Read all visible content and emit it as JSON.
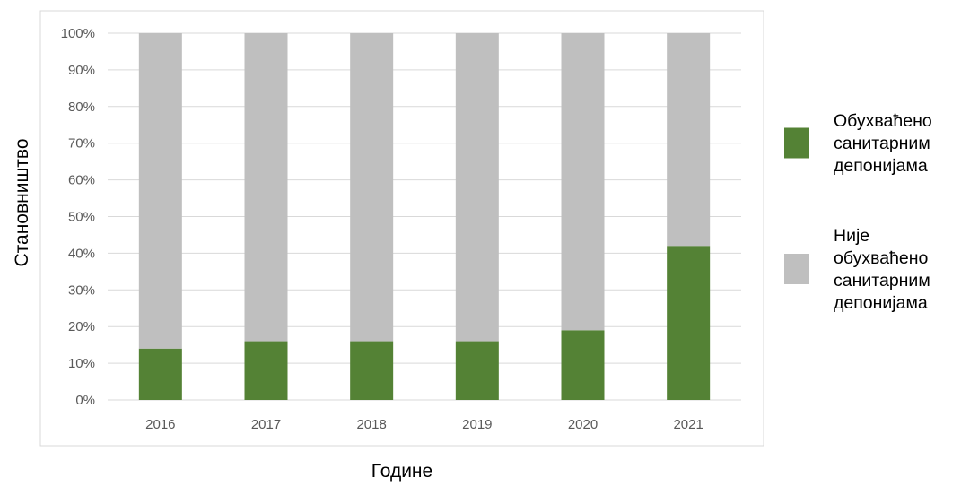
{
  "chart_data": {
    "type": "bar",
    "stacked": true,
    "percent_stacked": true,
    "categories": [
      "2016",
      "2017",
      "2018",
      "2019",
      "2020",
      "2021"
    ],
    "series": [
      {
        "name_lines": [
          "Обухваћено",
          "санитарним",
          "депонијама"
        ],
        "color": "#548235",
        "values": [
          14,
          16,
          16,
          16,
          19,
          42
        ]
      },
      {
        "name_lines": [
          "Није",
          "обухваћено",
          "санитарним",
          "депонијама"
        ],
        "color": "#bfbfbf",
        "values": [
          86,
          84,
          84,
          84,
          81,
          58
        ]
      }
    ],
    "xlabel": "Године",
    "ylabel": "Становништво",
    "ylim": [
      0,
      100
    ],
    "yticks": [
      "0%",
      "10%",
      "20%",
      "30%",
      "40%",
      "50%",
      "60%",
      "70%",
      "80%",
      "90%",
      "100%"
    ],
    "grid": true,
    "legend_position": "right"
  }
}
